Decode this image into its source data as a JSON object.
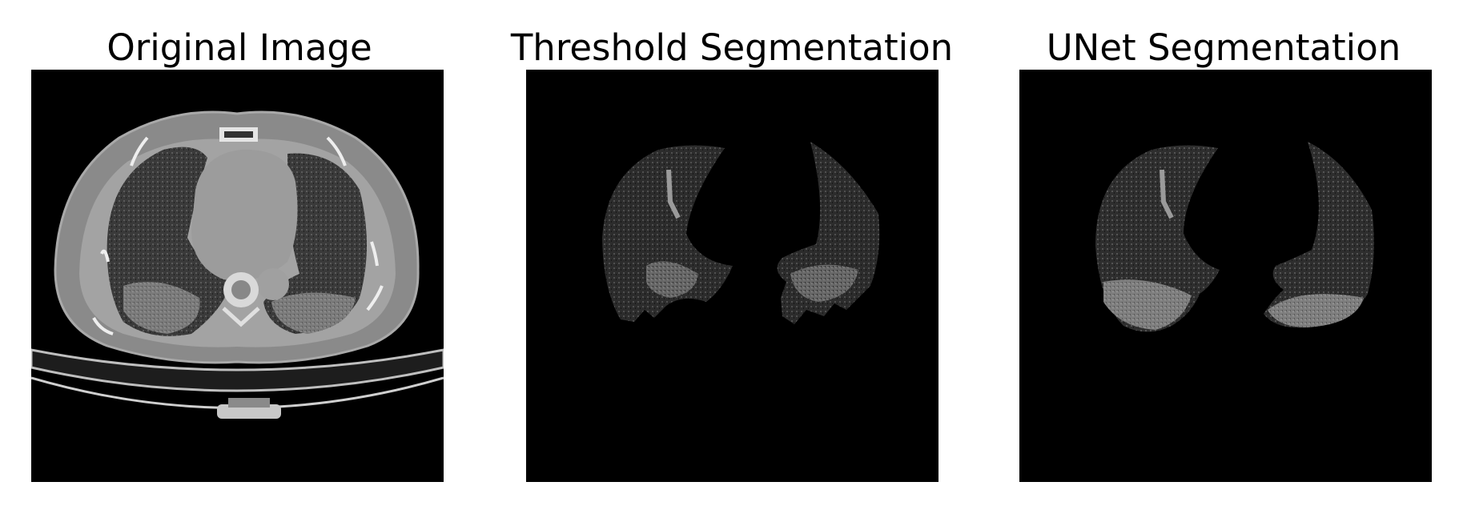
{
  "figure": {
    "panels": [
      {
        "title": "Original Image"
      },
      {
        "title": "Threshold Segmentation"
      },
      {
        "title": "UNet Segmentation"
      }
    ]
  },
  "colors": {
    "background": "#ffffff",
    "image_background": "#000000",
    "tissue_gray": "#8f8f8f",
    "lung_dark": "#242424"
  }
}
